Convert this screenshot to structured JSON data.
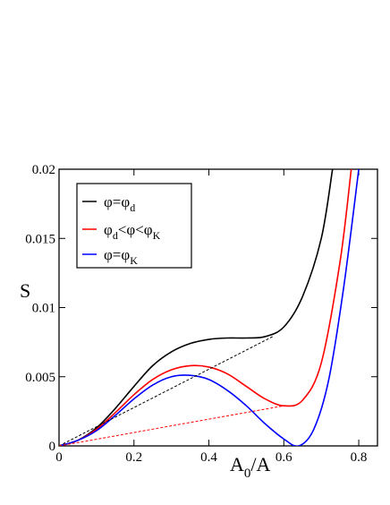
{
  "chart_data": {
    "type": "line",
    "xlabel_main": "A",
    "xlabel_sub": "0",
    "xlabel_tail": "/A",
    "ylabel": "S",
    "xlim": [
      0,
      0.85
    ],
    "ylim": [
      0,
      0.02
    ],
    "x_ticks": [
      0,
      0.2,
      0.4,
      0.6,
      0.8
    ],
    "x_tick_labels": [
      "0",
      "0.2",
      "0.4",
      "0.6",
      "0.8"
    ],
    "y_ticks": [
      0,
      0.005,
      0.01,
      0.015,
      0.02
    ],
    "y_tick_labels": [
      "0",
      "0.005",
      "0.01",
      "0.015",
      "0.02"
    ],
    "legend_position": "top-left",
    "series": [
      {
        "legend": {
          "base": "φ=φ",
          "sub": "d"
        },
        "color": "#000000",
        "style": "solid",
        "x": [
          0,
          0.05,
          0.1,
          0.15,
          0.2,
          0.25,
          0.3,
          0.35,
          0.4,
          0.45,
          0.5,
          0.55,
          0.6,
          0.65,
          0.7,
          0.73
        ],
        "y": [
          0,
          0.0004,
          0.0013,
          0.0027,
          0.0043,
          0.0058,
          0.0068,
          0.0074,
          0.0077,
          0.0078,
          0.0078,
          0.0079,
          0.0086,
          0.0108,
          0.015,
          0.02
        ]
      },
      {
        "legend": {
          "base1": "φ",
          "sub1": "d",
          "mid": "<φ<φ",
          "sub2": "K"
        },
        "color": "#ff0000",
        "style": "solid",
        "x": [
          0,
          0.05,
          0.1,
          0.15,
          0.2,
          0.25,
          0.3,
          0.35,
          0.4,
          0.45,
          0.5,
          0.55,
          0.6,
          0.65,
          0.7,
          0.75,
          0.78
        ],
        "y": [
          0,
          0.0004,
          0.0012,
          0.0024,
          0.0037,
          0.0048,
          0.0055,
          0.0058,
          0.0057,
          0.0052,
          0.0043,
          0.0034,
          0.0029,
          0.0033,
          0.006,
          0.0133,
          0.02
        ]
      },
      {
        "legend": {
          "base": "φ=φ",
          "sub": "K"
        },
        "color": "#0000ff",
        "style": "solid",
        "x": [
          0,
          0.05,
          0.1,
          0.15,
          0.2,
          0.25,
          0.3,
          0.35,
          0.4,
          0.45,
          0.5,
          0.55,
          0.6,
          0.64,
          0.68,
          0.72,
          0.76,
          0.8
        ],
        "y": [
          0,
          0.0004,
          0.0011,
          0.0022,
          0.0034,
          0.0044,
          0.005,
          0.0051,
          0.0048,
          0.004,
          0.0029,
          0.0016,
          0.0005,
          0,
          0.0012,
          0.0048,
          0.0115,
          0.02
        ]
      },
      {
        "color": "#000000",
        "style": "dashed",
        "x": [
          0,
          0.57
        ],
        "y": [
          0,
          0.0079
        ]
      },
      {
        "color": "#ff0000",
        "style": "dashed",
        "x": [
          0,
          0.6
        ],
        "y": [
          0,
          0.0029
        ]
      }
    ]
  }
}
